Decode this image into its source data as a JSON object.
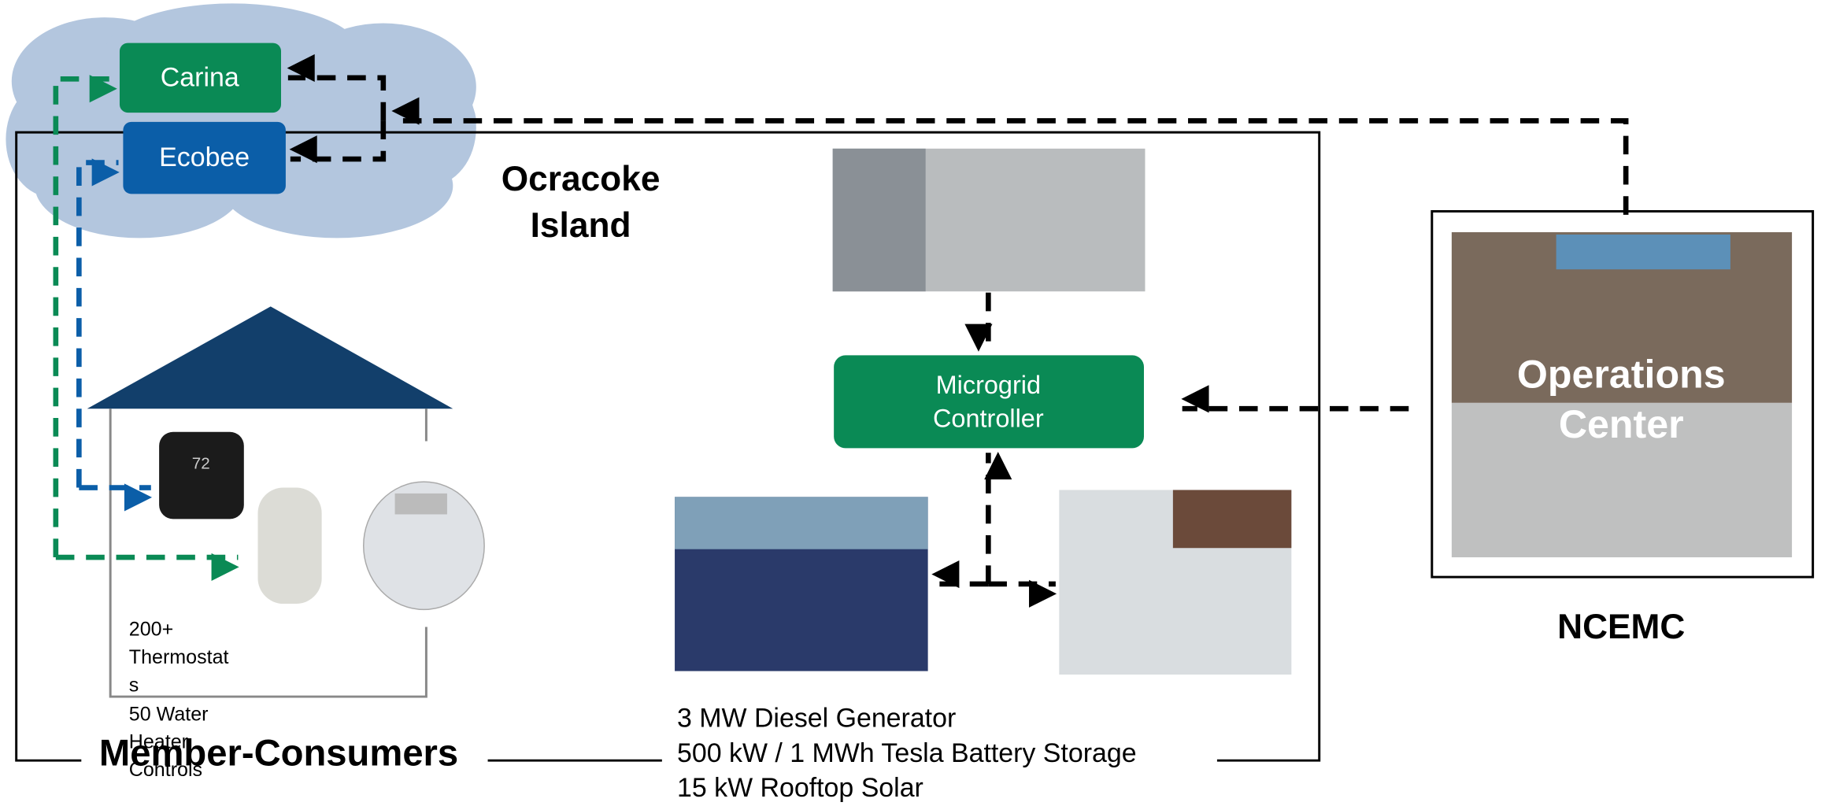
{
  "cloud": {
    "nodes": [
      {
        "label": "Carina"
      },
      {
        "label": "Ecobee"
      }
    ]
  },
  "island": {
    "title": [
      "Ocracoke",
      "Island"
    ]
  },
  "controller": {
    "label": [
      "Microgrid",
      "Controller"
    ]
  },
  "assets": {
    "lines": [
      "3 MW Diesel Generator",
      "500 kW / 1 MWh Tesla Battery Storage",
      "15 kW Rooftop Solar"
    ]
  },
  "operations": {
    "label": [
      "Operations",
      "Center"
    ],
    "org": "NCEMC"
  },
  "house": {
    "thermostat_display": "72",
    "devices": [
      "200+",
      "Thermostat",
      "s",
      "50 Water",
      "Heater",
      "Controls"
    ],
    "title": "Member-Consumers"
  }
}
